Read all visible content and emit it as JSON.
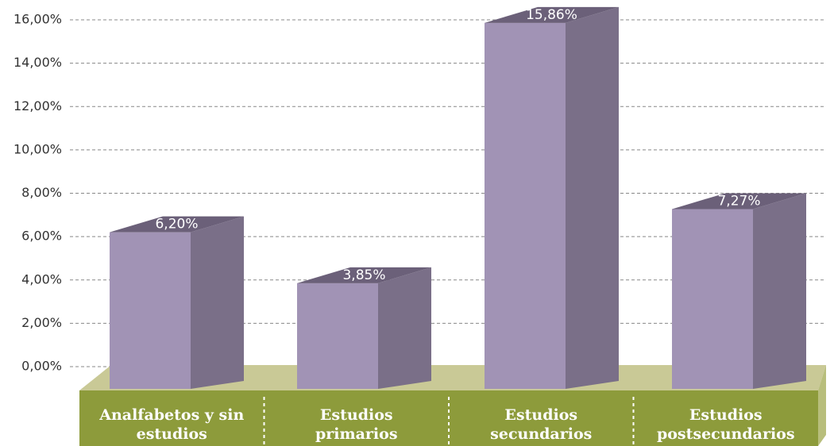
{
  "chart_data": {
    "type": "bar3d",
    "categories": [
      "Analfabetos y sin estudios",
      "Estudios primarios",
      "Estudios secundarios",
      "Estudios postsecundarios"
    ],
    "values": [
      6.2,
      3.85,
      15.86,
      7.27
    ],
    "value_labels": [
      "6,20%",
      "3,85%",
      "15,86%",
      "7,27%"
    ],
    "colors": {
      "front": "#a193b5",
      "side": "#7a6f88",
      "top": "#6b6079",
      "floor_top": "#c9c996",
      "floor_front": "#8d9b3b"
    },
    "ylim": [
      0,
      16
    ],
    "yticks": [
      {
        "value": 0,
        "label": "0,00%"
      },
      {
        "value": 2,
        "label": "2,00%"
      },
      {
        "value": 4,
        "label": "4,00%"
      },
      {
        "value": 6,
        "label": "6,00%"
      },
      {
        "value": 8,
        "label": "8,00%"
      },
      {
        "value": 10,
        "label": "10,00%"
      },
      {
        "value": 12,
        "label": "12,00%"
      },
      {
        "value": 14,
        "label": "14,00%"
      },
      {
        "value": 16,
        "label": "16,00%"
      }
    ],
    "grid": true
  }
}
